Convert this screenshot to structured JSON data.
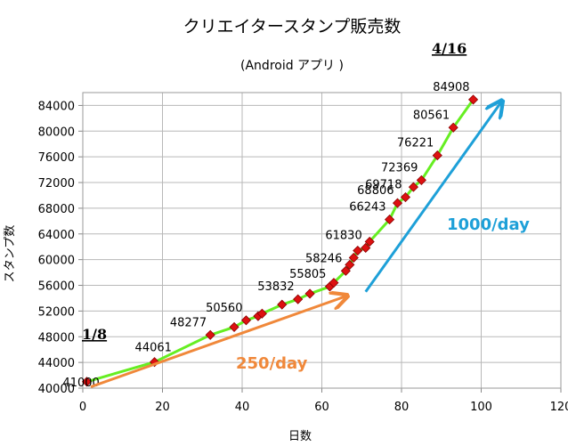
{
  "chart_data": {
    "type": "line",
    "title": "クリエイタースタンプ販売数",
    "subtitle": "(Android アプリ )",
    "xlabel": "日数",
    "ylabel": "スタンプ数",
    "xlim": [
      0,
      120
    ],
    "ylim": [
      40000,
      86000
    ],
    "x_ticks": [
      "0",
      "20",
      "40",
      "60",
      "80",
      "100",
      "120"
    ],
    "y_ticks": [
      "40000",
      "44000",
      "48000",
      "52000",
      "56000",
      "60000",
      "64000",
      "68000",
      "72000",
      "76000",
      "80000",
      "84000"
    ],
    "grid": true,
    "series": [
      {
        "color": "#66ee22",
        "marker_color": "#dd1111",
        "x": [
          1,
          18,
          32,
          38,
          41,
          44,
          45,
          50,
          54,
          57,
          62,
          63,
          66,
          67,
          68,
          69,
          71,
          72,
          77,
          79,
          81,
          83,
          85,
          89,
          93,
          98
        ],
        "y": [
          41000,
          44061,
          48277,
          49500,
          50560,
          51200,
          51600,
          53000,
          53832,
          54700,
          55805,
          56400,
          58246,
          59200,
          60300,
          61400,
          61830,
          62800,
          66243,
          68806,
          69718,
          71300,
          72369,
          76221,
          80561,
          84908
        ]
      }
    ],
    "point_labels": [
      {
        "x": 1,
        "y": 41000,
        "text": "41000"
      },
      {
        "x": 18,
        "y": 44061,
        "text": "44061"
      },
      {
        "x": 32,
        "y": 48277,
        "text": "48277"
      },
      {
        "x": 41,
        "y": 50560,
        "text": "50560"
      },
      {
        "x": 54,
        "y": 53832,
        "text": "53832"
      },
      {
        "x": 62,
        "y": 55805,
        "text": "55805"
      },
      {
        "x": 66,
        "y": 58246,
        "text": "58246"
      },
      {
        "x": 71,
        "y": 61830,
        "text": "61830"
      },
      {
        "x": 77,
        "y": 66243,
        "text": "66243"
      },
      {
        "x": 79,
        "y": 68806,
        "text": "68806"
      },
      {
        "x": 81,
        "y": 69718,
        "text": "69718"
      },
      {
        "x": 85,
        "y": 72369,
        "text": "72369"
      },
      {
        "x": 89,
        "y": 76221,
        "text": "76221"
      },
      {
        "x": 93,
        "y": 80561,
        "text": "80561"
      },
      {
        "x": 98,
        "y": 84908,
        "text": "84908"
      }
    ],
    "annotations": {
      "date_start": "1/8",
      "date_end": "4/16",
      "rate_slow": "250/day",
      "rate_fast": "1000/day",
      "rate_slow_color": "#f0883a",
      "rate_fast_color": "#1ea0d8"
    }
  }
}
